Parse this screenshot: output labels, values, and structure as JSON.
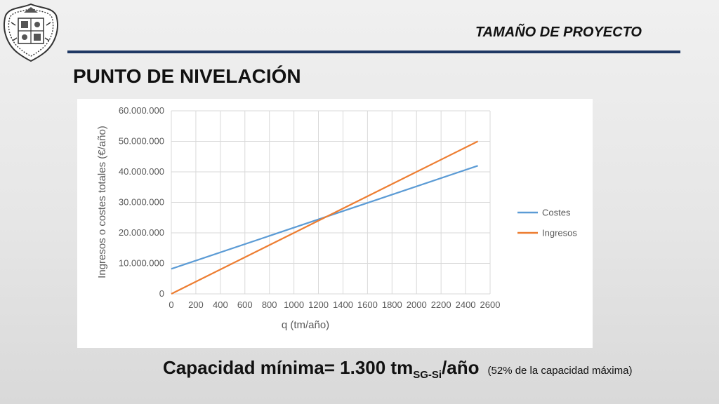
{
  "header": {
    "title": "TAMAÑO DE PROYECTO",
    "accent_color": "#1f3864",
    "logo_icon": "university-seal-icon"
  },
  "page_title": "PUNTO DE NIVELACIÓN",
  "chart_data": {
    "type": "line",
    "x": [
      0,
      2500
    ],
    "series": [
      {
        "name": "Costes",
        "color": "#5b9bd5",
        "values": [
          8200000,
          42000000
        ]
      },
      {
        "name": "Ingresos",
        "color": "#ed7d31",
        "values": [
          0,
          50000000
        ]
      }
    ],
    "xlabel": "q (tm/año)",
    "ylabel": "Ingresos o costes totales (€/año)",
    "xlim": [
      0,
      2600
    ],
    "ylim": [
      0,
      60000000
    ],
    "x_ticks": [
      "0",
      "200",
      "400",
      "600",
      "800",
      "1000",
      "1200",
      "1400",
      "1600",
      "1800",
      "2000",
      "2200",
      "2400",
      "2600"
    ],
    "y_ticks": [
      "0",
      "10.000.000",
      "20.000.000",
      "30.000.000",
      "40.000.000",
      "50.000.000",
      "60.000.000"
    ],
    "grid": true,
    "legend_position": "right"
  },
  "footer": {
    "main_text": "Capacidad mínima= 1.300 tm",
    "subscript": "SG-Si",
    "suffix": "/año",
    "note": "(52% de la capacidad máxima)"
  }
}
